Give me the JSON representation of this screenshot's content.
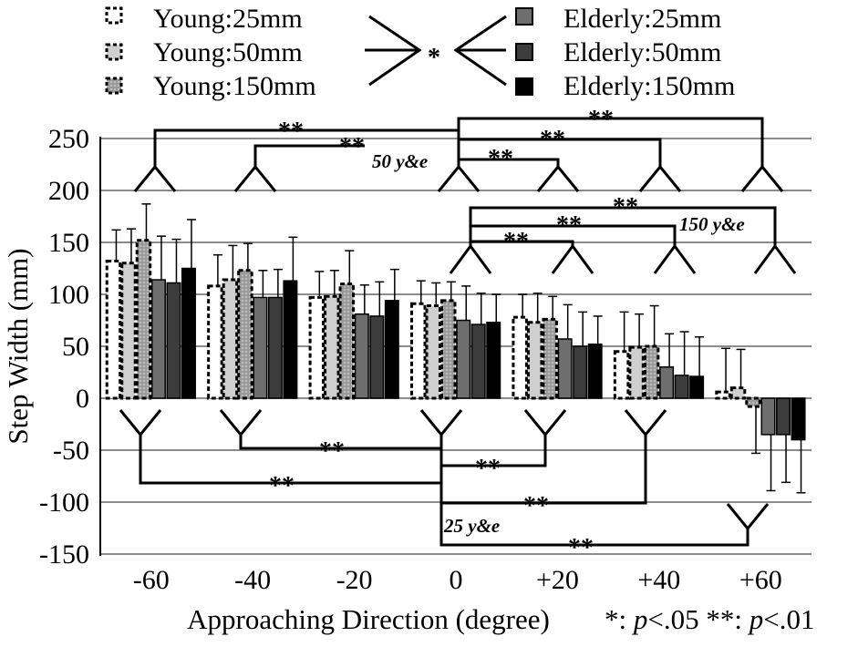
{
  "chart_data": {
    "type": "bar",
    "xlabel": "Approaching Direction (degree)",
    "ylabel": "Step Width (mm)",
    "categories": [
      "-60",
      "-40",
      "-20",
      "0",
      "+20",
      "+40",
      "+60"
    ],
    "ylim": [
      -150,
      250
    ],
    "yticks": [
      "250",
      "200",
      "150",
      "100",
      "50",
      "0",
      "-50",
      "-100",
      "-150"
    ],
    "grid": true,
    "legend_position": "top",
    "series": [
      {
        "name": "Young:25mm",
        "color": "#ffffff",
        "dashed": true,
        "values": [
          132,
          108,
          97,
          91,
          78,
          45,
          6
        ],
        "errors": [
          30,
          30,
          25,
          22,
          22,
          38,
          42
        ]
      },
      {
        "name": "Young:50mm",
        "color": "#cfcfcf",
        "dashed": true,
        "values": [
          130,
          114,
          98,
          89,
          73,
          49,
          10
        ],
        "errors": [
          33,
          33,
          25,
          22,
          28,
          32,
          37
        ]
      },
      {
        "name": "Young:150mm",
        "color": "#a6a6a6",
        "dashed": true,
        "values": [
          152,
          123,
          110,
          94,
          76,
          50,
          -8
        ],
        "errors": [
          35,
          26,
          32,
          18,
          22,
          39,
          45
        ]
      },
      {
        "name": "Elderly:25mm",
        "color": "#6e6e6e",
        "dashed": false,
        "values": [
          114,
          97,
          81,
          75,
          57,
          30,
          -35
        ],
        "errors": [
          42,
          26,
          28,
          33,
          33,
          32,
          54
        ]
      },
      {
        "name": "Elderly:50mm",
        "color": "#3c3c3c",
        "dashed": false,
        "values": [
          111,
          97,
          79,
          71,
          50,
          22,
          -35
        ],
        "errors": [
          42,
          27,
          33,
          30,
          33,
          42,
          46
        ]
      },
      {
        "name": "Elderly:150mm",
        "color": "#000000",
        "dashed": false,
        "values": [
          125,
          113,
          94,
          73,
          52,
          21,
          -40
        ],
        "errors": [
          47,
          42,
          30,
          27,
          27,
          38,
          51
        ]
      }
    ],
    "annotations": {
      "young_elderly_sig": "*",
      "double_star": "**",
      "group_50": "50 y&e",
      "group_150": "150 y&e",
      "group_25": "25 y&e",
      "note_star_sym": "*",
      "note_star_text": ": ",
      "note_p": "p",
      "note_p05": "<.05 ",
      "note_dstar_sym": "**",
      "note_dstar_text": ": ",
      "note_p01": "<.01"
    }
  }
}
